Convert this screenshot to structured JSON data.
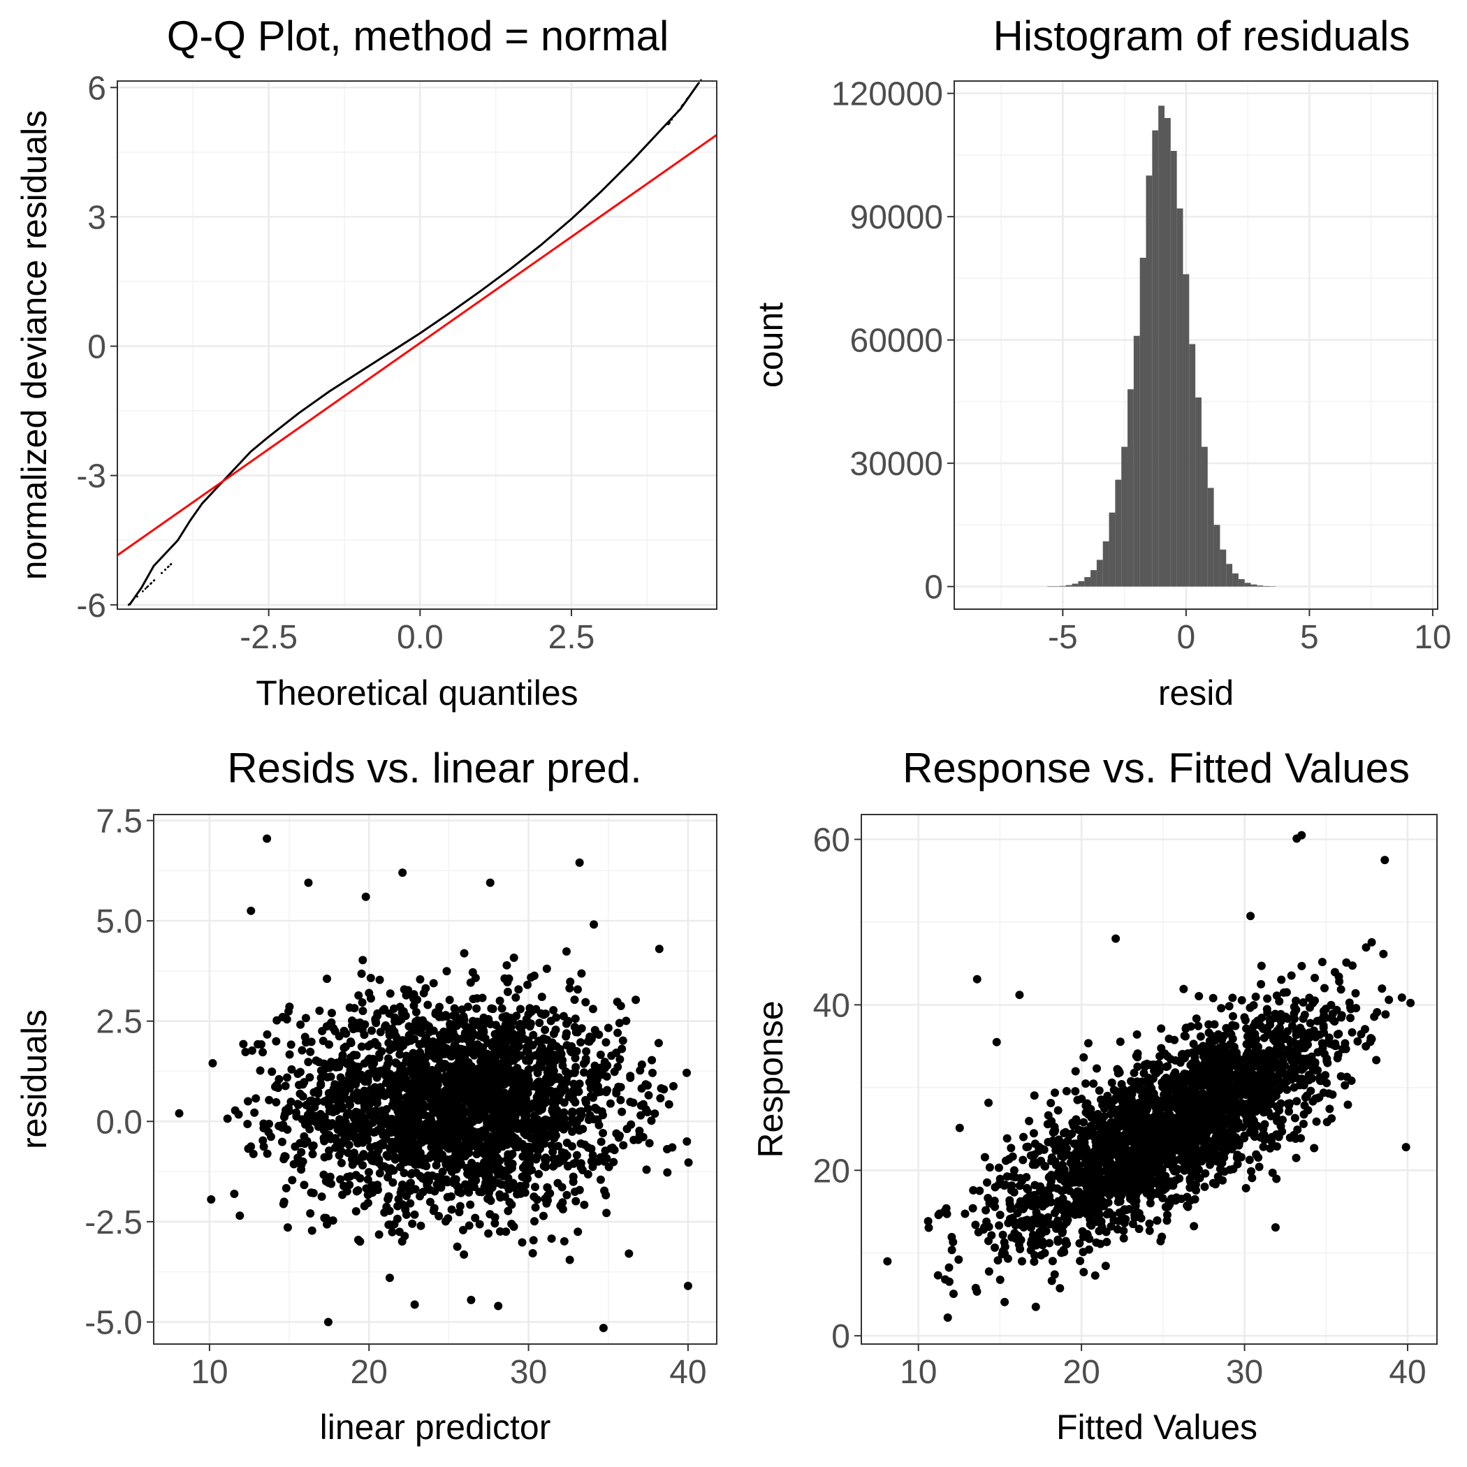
{
  "chart_data": [
    {
      "id": "qq",
      "type": "scatter",
      "title": "Q-Q Plot, method = normal",
      "xlabel": "Theoretical quantiles",
      "ylabel": "normalized deviance residuals",
      "xlim": [
        -5.0,
        4.9
      ],
      "ylim": [
        -6.1,
        6.15
      ],
      "xticks": [
        -2.5,
        0.0,
        2.5
      ],
      "xtick_labels": [
        "-2.5",
        "0.0",
        "2.5"
      ],
      "yticks": [
        -6,
        -3,
        0,
        3,
        6
      ],
      "ytick_labels": [
        "-6",
        "-3",
        "0",
        "3",
        "6"
      ],
      "points_x": [
        -4.8,
        -4.6,
        -4.4,
        -4.2,
        -4.0,
        -3.8,
        -3.6,
        -3.4,
        -3.2,
        -3.0,
        -2.8,
        -2.5,
        -2.0,
        -1.5,
        -1.0,
        -0.5,
        0.0,
        0.5,
        1.0,
        1.5,
        2.0,
        2.5,
        3.0,
        3.5,
        4.0,
        4.3,
        4.6
      ],
      "points_y": [
        -6.0,
        -5.6,
        -5.1,
        -4.8,
        -4.5,
        -4.05,
        -3.65,
        -3.35,
        -3.05,
        -2.75,
        -2.45,
        -2.1,
        -1.55,
        -1.05,
        -0.6,
        -0.15,
        0.3,
        0.78,
        1.28,
        1.8,
        2.35,
        2.95,
        3.6,
        4.3,
        5.05,
        5.5,
        6.1
      ],
      "reference_line": {
        "color": "#ff0000",
        "x": [
          -5.0,
          4.9
        ],
        "y": [
          -4.85,
          4.9
        ]
      },
      "point_color": "#000000"
    },
    {
      "id": "hist",
      "type": "bar",
      "title": "Histogram of residuals",
      "xlabel": "resid",
      "ylabel": "count",
      "xlim": [
        -9.4,
        10.2
      ],
      "ylim": [
        -5500,
        123000
      ],
      "xticks": [
        -5,
        0,
        5,
        10
      ],
      "xtick_labels": [
        "-5",
        "0",
        "5",
        "10"
      ],
      "yticks": [
        0,
        30000,
        60000,
        90000,
        120000
      ],
      "ytick_labels": [
        "0",
        "30000",
        "60000",
        "90000",
        "120000"
      ],
      "bin_width": 0.25,
      "bin_start": -5.625,
      "values": [
        20,
        60,
        150,
        350,
        700,
        1300,
        2300,
        4000,
        6500,
        11000,
        18000,
        26000,
        34000,
        48000,
        61000,
        80000,
        100000,
        111000,
        117000,
        114000,
        106000,
        92000,
        76000,
        59000,
        46000,
        34000,
        24000,
        15000,
        9000,
        5500,
        3200,
        1800,
        900,
        500,
        260,
        120,
        40
      ],
      "bar_color": "#595959"
    },
    {
      "id": "resid",
      "type": "scatter",
      "title": "Resids vs. linear pred.",
      "xlabel": "linear predictor",
      "ylabel": "residuals",
      "xlim": [
        6.5,
        41.8
      ],
      "ylim": [
        -5.55,
        7.65
      ],
      "xticks": [
        10,
        20,
        30,
        40
      ],
      "xtick_labels": [
        "10",
        "20",
        "30",
        "40"
      ],
      "yticks": [
        -5.0,
        -2.5,
        0.0,
        2.5,
        5.0,
        7.5
      ],
      "ytick_labels": [
        "-5.0",
        "-2.5",
        "0.0",
        "2.5",
        "5.0",
        "7.5"
      ],
      "outliers_x": [
        8.1,
        13.6,
        16.2,
        22.1,
        27.6,
        33.2,
        34.7,
        12.6,
        10.2,
        40.0,
        11.9,
        26.4,
        28.1,
        21.3,
        38.2,
        19.8
      ],
      "outliers_y": [
        0.2,
        7.05,
        5.95,
        6.2,
        5.95,
        6.45,
        -5.15,
        5.25,
        1.45,
        -4.1,
        -2.35,
        -4.45,
        -4.6,
        -3.9,
        4.3,
        5.6
      ],
      "point_color": "#000000"
    },
    {
      "id": "resp",
      "type": "scatter",
      "title": "Response vs. Fitted Values",
      "xlabel": "Fitted Values",
      "ylabel": "Response",
      "xlim": [
        6.5,
        41.8
      ],
      "ylim": [
        -1.0,
        63.0
      ],
      "xticks": [
        10,
        20,
        30,
        40
      ],
      "xtick_labels": [
        "10",
        "20",
        "30",
        "40"
      ],
      "yticks": [
        0,
        20,
        40,
        60
      ],
      "ytick_labels": [
        "0",
        "20",
        "40",
        "60"
      ],
      "outliers_x": [
        8.1,
        11.8,
        13.6,
        16.2,
        33.2,
        33.5,
        39.9,
        17.2,
        22.1,
        31.9,
        14.8,
        38.6
      ],
      "outliers_y": [
        9.0,
        2.2,
        43.1,
        41.2,
        60.1,
        60.5,
        22.8,
        3.5,
        48.0,
        13.1,
        35.5,
        57.5
      ],
      "point_color": "#000000"
    }
  ]
}
